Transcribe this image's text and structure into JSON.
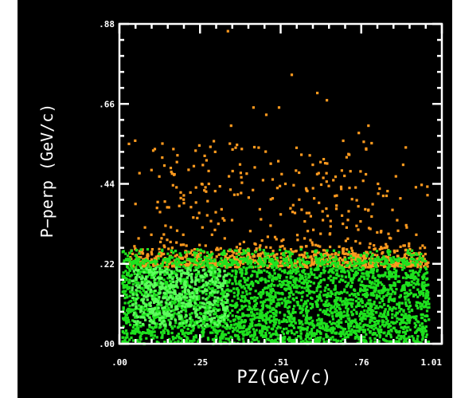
{
  "chart_data": {
    "type": "scatter",
    "title": "",
    "xlabel": "PZ(GeV/c)",
    "ylabel": "P−perp (GeV/c)",
    "xlim": [
      0.0,
      1.01
    ],
    "ylim": [
      0.0,
      0.88
    ],
    "x_tick_labels": [
      ".00",
      ".25",
      ".51",
      ".76",
      "1.01"
    ],
    "x_tick_values": [
      0.0,
      0.2525,
      0.505,
      0.7575,
      1.01
    ],
    "y_tick_labels": [
      ".00",
      ".22",
      ".44",
      ".66",
      ".88"
    ],
    "y_tick_values": [
      0.0,
      0.22,
      0.44,
      0.66,
      0.88
    ],
    "grid": false,
    "legend": "none",
    "background_color": "#000000",
    "frame_color": "#ffffff",
    "series": [
      {
        "color": "#ff9a1e",
        "description_points": [
          [
            0.03,
            0.55
          ],
          [
            0.05,
            0.26
          ],
          [
            0.06,
            0.29
          ],
          [
            0.08,
            0.32
          ],
          [
            0.1,
            0.3
          ],
          [
            0.12,
            0.39
          ],
          [
            0.14,
            0.27
          ],
          [
            0.16,
            0.28
          ],
          [
            0.18,
            0.5
          ],
          [
            0.2,
            0.3
          ],
          [
            0.21,
            0.27
          ],
          [
            0.22,
            0.25
          ],
          [
            0.24,
            0.43
          ],
          [
            0.25,
            0.36
          ],
          [
            0.26,
            0.32
          ],
          [
            0.27,
            0.27
          ],
          [
            0.28,
            0.44
          ],
          [
            0.29,
            0.3
          ],
          [
            0.3,
            0.42
          ],
          [
            0.31,
            0.33
          ],
          [
            0.32,
            0.37
          ],
          [
            0.33,
            0.29
          ],
          [
            0.34,
            0.86
          ],
          [
            0.35,
            0.6
          ],
          [
            0.36,
            0.41
          ],
          [
            0.38,
            0.47
          ],
          [
            0.39,
            0.28
          ],
          [
            0.41,
            0.31
          ],
          [
            0.42,
            0.65
          ],
          [
            0.44,
            0.37
          ],
          [
            0.45,
            0.45
          ],
          [
            0.46,
            0.63
          ],
          [
            0.48,
            0.4
          ],
          [
            0.5,
            0.65
          ],
          [
            0.52,
            0.44
          ],
          [
            0.54,
            0.74
          ],
          [
            0.55,
            0.36
          ],
          [
            0.57,
            0.52
          ],
          [
            0.58,
            0.29
          ],
          [
            0.59,
            0.31
          ],
          [
            0.61,
            0.4
          ],
          [
            0.62,
            0.69
          ],
          [
            0.63,
            0.5
          ],
          [
            0.65,
            0.67
          ],
          [
            0.67,
            0.45
          ],
          [
            0.68,
            0.38
          ],
          [
            0.7,
            0.33
          ],
          [
            0.72,
            0.52
          ],
          [
            0.74,
            0.43
          ],
          [
            0.75,
            0.58
          ],
          [
            0.77,
            0.37
          ],
          [
            0.78,
            0.6
          ],
          [
            0.79,
            0.35
          ],
          [
            0.81,
            0.44
          ],
          [
            0.82,
            0.31
          ],
          [
            0.84,
            0.42
          ],
          [
            0.85,
            0.29
          ],
          [
            0.87,
            0.34
          ],
          [
            0.88,
            0.4
          ],
          [
            0.89,
            0.27
          ],
          [
            0.9,
            0.32
          ],
          [
            0.91,
            0.26
          ],
          [
            0.93,
            0.3
          ],
          [
            0.94,
            0.25
          ],
          [
            0.95,
            0.27
          ]
        ]
      },
      {
        "color": "#1ee21e",
        "description_points": [
          [
            0.02,
            0.2
          ],
          [
            0.03,
            0.06
          ],
          [
            0.05,
            0.12
          ],
          [
            0.07,
            0.17
          ],
          [
            0.1,
            0.03
          ],
          [
            0.12,
            0.09
          ],
          [
            0.15,
            0.14
          ],
          [
            0.18,
            0.19
          ],
          [
            0.21,
            0.05
          ],
          [
            0.24,
            0.11
          ],
          [
            0.27,
            0.16
          ],
          [
            0.3,
            0.21
          ],
          [
            0.33,
            0.07
          ],
          [
            0.36,
            0.13
          ],
          [
            0.39,
            0.18
          ],
          [
            0.42,
            0.04
          ],
          [
            0.45,
            0.1
          ],
          [
            0.48,
            0.15
          ],
          [
            0.51,
            0.2
          ],
          [
            0.54,
            0.06
          ],
          [
            0.57,
            0.12
          ],
          [
            0.6,
            0.17
          ],
          [
            0.63,
            0.03
          ],
          [
            0.66,
            0.09
          ],
          [
            0.69,
            0.14
          ],
          [
            0.72,
            0.19
          ],
          [
            0.75,
            0.05
          ],
          [
            0.78,
            0.11
          ],
          [
            0.81,
            0.16
          ],
          [
            0.84,
            0.21
          ],
          [
            0.87,
            0.07
          ],
          [
            0.9,
            0.13
          ],
          [
            0.93,
            0.18
          ],
          [
            0.95,
            0.04
          ],
          [
            0.97,
            0.1
          ]
        ]
      }
    ]
  }
}
